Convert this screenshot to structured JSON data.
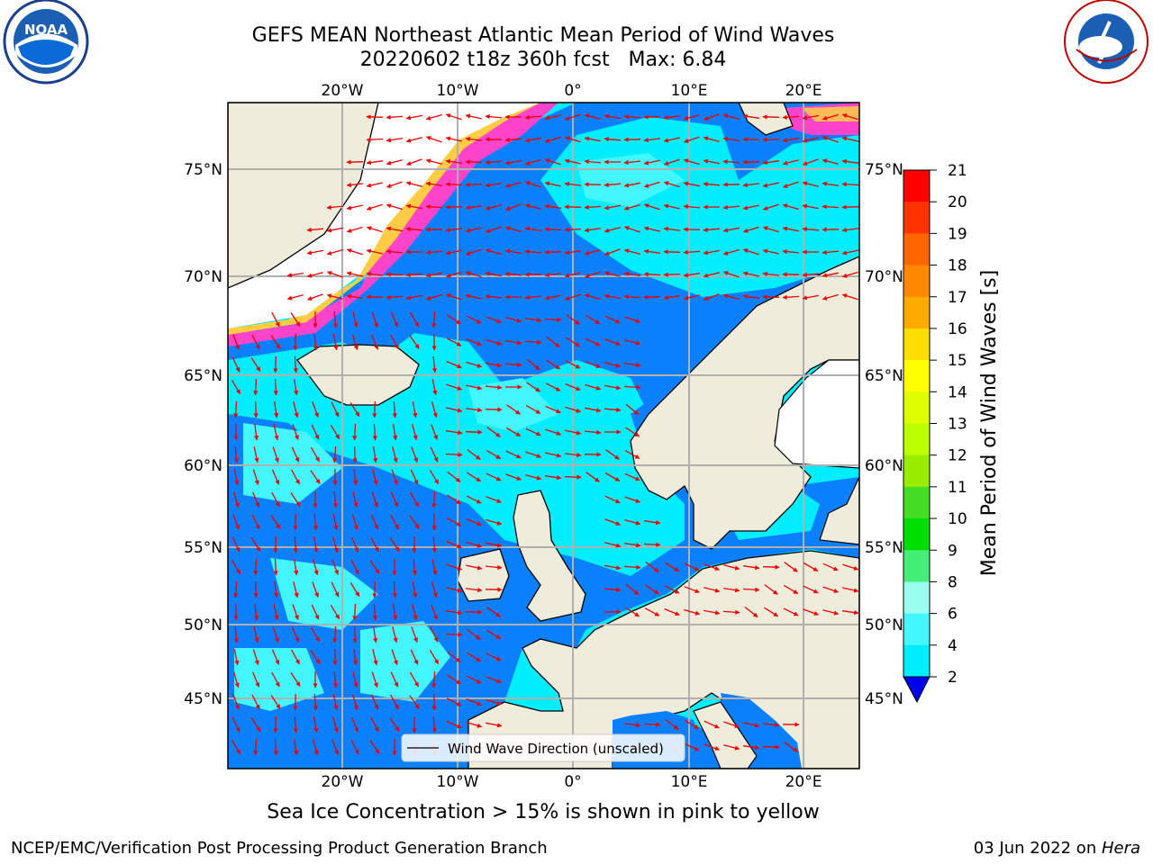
{
  "title": {
    "line1": "GEFS MEAN Northeast Atlantic Mean Period of Wind Waves",
    "line2": "20220602 t18z 360h fcst   Max: 6.84"
  },
  "logos": {
    "left": {
      "name": "noaa-logo",
      "text": "NOAA"
    },
    "right": {
      "name": "nws-logo",
      "text": "NATIONAL WEATHER SERVICE"
    }
  },
  "map": {
    "lon_labels_top": [
      "20°W",
      "10°W",
      "0°",
      "10°E",
      "20°E"
    ],
    "lon_labels_bottom": [
      "20°W",
      "10°W",
      "0°",
      "10°E",
      "20°E"
    ],
    "lat_labels": [
      "75°N",
      "70°N",
      "65°N",
      "60°N",
      "55°N",
      "50°N",
      "45°N"
    ],
    "legend_label": "Wind Wave Direction (unscaled)",
    "colors": {
      "land": "#efecdc",
      "ice_free_white": "#ffffff",
      "wave_2_4": "#0a80ff",
      "wave_4_6": "#00eeff",
      "wave_6_8": "#44f6ff",
      "arrow": "#ee0000",
      "grid": "#b0b0b0"
    }
  },
  "colorbar": {
    "label": "Mean Period of Wind Waves [s]",
    "ticks": [
      "21",
      "20",
      "19",
      "18",
      "17",
      "16",
      "15",
      "14",
      "13",
      "12",
      "11",
      "10",
      "9",
      "8",
      "6",
      "4",
      "2"
    ],
    "colors": [
      "#ff0000",
      "#ff3300",
      "#ff6600",
      "#ff8800",
      "#ffaa00",
      "#ffdd00",
      "#ffff00",
      "#ddff00",
      "#bbff00",
      "#99ee00",
      "#44dd22",
      "#00dd00",
      "#44ee77",
      "#99ffee",
      "#44f6ff",
      "#00eeff",
      "#0a80ff"
    ],
    "extend_color": "#0000ee"
  },
  "bottom_note": "Sea Ice Concentration > 15% is shown in pink to yellow",
  "footer": {
    "left": "NCEP/EMC/Verification Post Processing Product Generation Branch",
    "right_date": "03 Jun 2022 on ",
    "right_host": "Hera"
  }
}
